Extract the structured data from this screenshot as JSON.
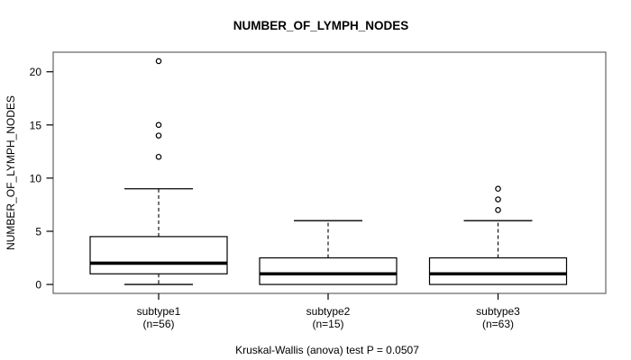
{
  "chart_data": {
    "type": "boxplot",
    "title": "NUMBER_OF_LYMPH_NODES",
    "ylabel": "NUMBER_OF_LYMPH_NODES",
    "footer": "Kruskal-Wallis (anova) test P = 0.0507",
    "y_ticks": [
      0,
      5,
      10,
      15,
      20
    ],
    "ylim": [
      -0.84,
      21.84
    ],
    "grid": false,
    "legend": "none",
    "groups": [
      {
        "label": "subtype1",
        "sublabel": "(n=56)",
        "n": 56,
        "whisker_low": 0,
        "q1": 1,
        "median": 2,
        "q3": 4.5,
        "whisker_high": 9,
        "outliers": [
          12,
          14,
          15,
          21
        ]
      },
      {
        "label": "subtype2",
        "sublabel": "(n=15)",
        "n": 15,
        "whisker_low": 0,
        "q1": 0,
        "median": 1,
        "q3": 2.5,
        "whisker_high": 6,
        "outliers": []
      },
      {
        "label": "subtype3",
        "sublabel": "(n=63)",
        "n": 63,
        "whisker_low": 0,
        "q1": 0,
        "median": 1,
        "q3": 2.5,
        "whisker_high": 6,
        "outliers": [
          7,
          8,
          9
        ]
      }
    ],
    "colors": {
      "line": "#000000",
      "frame": "#555555",
      "background": "#ffffff",
      "box_fill": "#ffffff"
    }
  }
}
